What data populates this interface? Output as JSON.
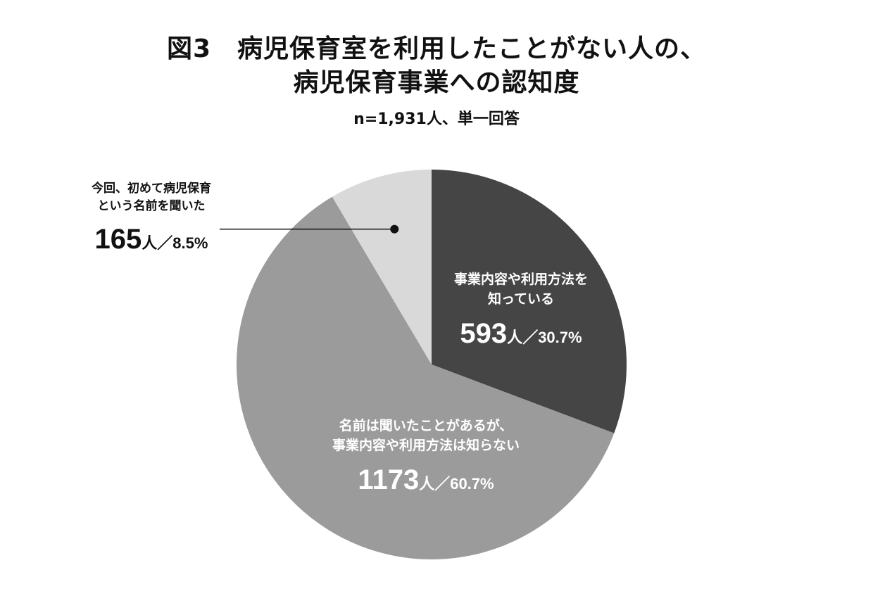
{
  "title": {
    "line1": "図3　病児保育室を利用したことがない人の、",
    "line2": "病児保育事業への認知度"
  },
  "subtitle": "n=1,931人、単一回答",
  "chart_data": {
    "type": "pie",
    "start": "12 o'clock, clockwise",
    "slices": [
      {
        "id": "known",
        "label_lines": [
          "事業内容や利用方法を",
          "知っている"
        ],
        "count_text": "593",
        "unit": "人",
        "percent_text": "／30.7%",
        "value": 30.7,
        "count": 593,
        "color": "#454545",
        "label_color": "#ffffff"
      },
      {
        "id": "heard",
        "label_lines": [
          "名前は聞いたことがあるが、",
          "事業内容や利用方法は知らない"
        ],
        "count_text": "1173",
        "unit": "人",
        "percent_text": "／60.7%",
        "value": 60.7,
        "count": 1173,
        "color": "#9b9b9b",
        "label_color": "#ffffff"
      },
      {
        "id": "first",
        "label_lines": [
          "今回、初めて病児保育",
          "という名前を聞いた"
        ],
        "count_text": "165",
        "unit": "人",
        "percent_text": "／8.5%",
        "value": 8.5,
        "count": 165,
        "color": "#d9d9d9",
        "label_color": "#111111",
        "callout": true
      }
    ]
  }
}
